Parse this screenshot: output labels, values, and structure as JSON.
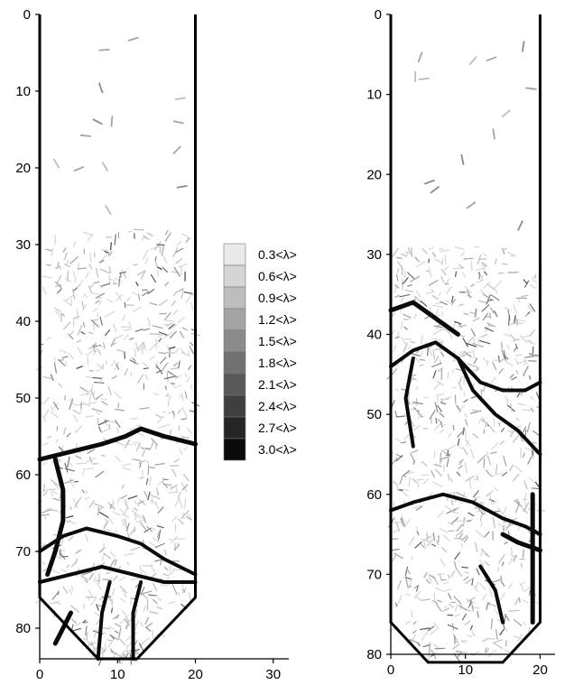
{
  "chart_data": [
    {
      "type": "heatmap",
      "panel": "left",
      "title": "",
      "xlabel": "",
      "ylabel": "",
      "xlim": [
        0,
        32
      ],
      "ylim": [
        84,
        0
      ],
      "x_ticks": [
        "0",
        "10",
        "20",
        "30"
      ],
      "y_ticks": [
        "0",
        "10",
        "20",
        "30",
        "40",
        "50",
        "60",
        "70",
        "80"
      ],
      "silo_outline": [
        [
          0,
          0
        ],
        [
          0,
          76
        ],
        [
          7.5,
          84
        ],
        [
          12.5,
          84
        ],
        [
          20,
          76
        ],
        [
          20,
          0
        ]
      ],
      "dense_region_y": [
        28,
        84
      ],
      "strong_chains": [
        [
          [
            0,
            58
          ],
          [
            4,
            57
          ],
          [
            8,
            56
          ],
          [
            11,
            55
          ],
          [
            13,
            54
          ],
          [
            16,
            55
          ],
          [
            20,
            56
          ]
        ],
        [
          [
            0,
            70
          ],
          [
            3,
            68
          ],
          [
            6,
            67
          ],
          [
            10,
            68
          ],
          [
            13,
            69
          ],
          [
            16,
            71
          ],
          [
            20,
            73
          ]
        ],
        [
          [
            0,
            74
          ],
          [
            4,
            73
          ],
          [
            8,
            72
          ],
          [
            12,
            73
          ],
          [
            16,
            74
          ],
          [
            20,
            74
          ]
        ],
        [
          [
            2,
            58
          ],
          [
            3,
            62
          ],
          [
            3,
            66
          ],
          [
            2,
            70
          ],
          [
            1,
            73
          ]
        ],
        [
          [
            9,
            74
          ],
          [
            8,
            78
          ],
          [
            7.5,
            84
          ]
        ],
        [
          [
            13,
            74
          ],
          [
            12,
            78
          ],
          [
            12,
            84
          ]
        ],
        [
          [
            4,
            78
          ],
          [
            3,
            80
          ],
          [
            2,
            82
          ]
        ]
      ],
      "grain_density": 0.55
    },
    {
      "type": "heatmap",
      "panel": "right",
      "title": "",
      "xlabel": "",
      "ylabel": "",
      "xlim": [
        0,
        22
      ],
      "ylim": [
        80,
        0
      ],
      "x_ticks": [
        "0",
        "10",
        "20"
      ],
      "y_ticks": [
        "0",
        "10",
        "20",
        "30",
        "40",
        "50",
        "60",
        "70",
        "80"
      ],
      "silo_outline": [
        [
          0,
          0
        ],
        [
          0,
          76
        ],
        [
          5,
          81
        ],
        [
          15,
          81
        ],
        [
          20,
          76
        ],
        [
          20,
          0
        ]
      ],
      "dense_region_y": [
        29,
        80
      ],
      "strong_chains": [
        [
          [
            0,
            37
          ],
          [
            3,
            36
          ],
          [
            6,
            38
          ],
          [
            9,
            40
          ]
        ],
        [
          [
            0,
            44
          ],
          [
            3,
            42
          ],
          [
            6,
            41
          ],
          [
            9,
            43
          ],
          [
            12,
            46
          ],
          [
            15,
            47
          ],
          [
            18,
            47
          ],
          [
            20,
            46
          ]
        ],
        [
          [
            0,
            62
          ],
          [
            3,
            61
          ],
          [
            7,
            60
          ],
          [
            11,
            61
          ],
          [
            15,
            63
          ],
          [
            18,
            64
          ],
          [
            20,
            65
          ]
        ],
        [
          [
            15,
            65
          ],
          [
            17,
            66
          ],
          [
            20,
            67
          ]
        ],
        [
          [
            9,
            43
          ],
          [
            11,
            47
          ],
          [
            14,
            50
          ],
          [
            17,
            52
          ],
          [
            20,
            55
          ]
        ],
        [
          [
            12,
            69
          ],
          [
            14,
            72
          ],
          [
            15,
            76
          ]
        ],
        [
          [
            19,
            60
          ],
          [
            19,
            68
          ],
          [
            19,
            76
          ]
        ],
        [
          [
            3,
            43
          ],
          [
            2,
            48
          ],
          [
            3,
            54
          ]
        ]
      ],
      "grain_density": 0.55
    }
  ],
  "legend": {
    "entries": [
      "0.3<λ>",
      "0.6<λ>",
      "0.9<λ>",
      "1.2<λ>",
      "1.5<λ>",
      "1.8<λ>",
      "2.1<λ>",
      "2.4<λ>",
      "2.7<λ>",
      "3.0<λ>"
    ],
    "colors": [
      "#e9e9e9",
      "#d5d5d5",
      "#bdbdbd",
      "#a4a4a4",
      "#8b8b8b",
      "#717171",
      "#585858",
      "#3f3f3f",
      "#262626",
      "#0a0a0a"
    ]
  }
}
